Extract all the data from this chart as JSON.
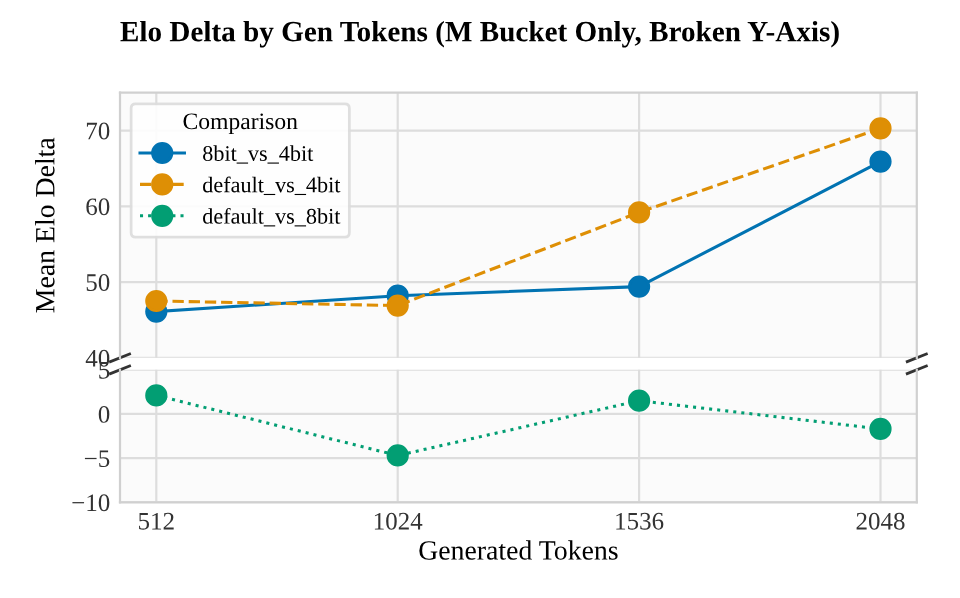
{
  "chart_data": [
    {
      "type": "line",
      "title": "Elo Delta by Gen Tokens (M Bucket Only, Broken Y-Axis)",
      "ylabel": "Mean Elo Delta",
      "legend_title": "Comparison",
      "legend": "top left",
      "grid": true,
      "marker": "circle",
      "tick_labels": "y",
      "x": [
        512,
        1024,
        1536,
        2048
      ],
      "xlim": [
        435,
        2125
      ],
      "xticks": [
        512,
        1024,
        1536,
        2048
      ],
      "ylim": [
        40,
        75
      ],
      "yticks": [
        40,
        50,
        60,
        70
      ],
      "series": [
        {
          "name": "8bit_vs_4bit",
          "color": "#0173b2",
          "line_style": "solid",
          "values": [
            46.1,
            48.2,
            49.4,
            65.9
          ]
        },
        {
          "name": "default_vs_4bit",
          "color": "#de8f05",
          "line_style": "dashed",
          "values": [
            47.5,
            46.9,
            59.2,
            70.3
          ]
        }
      ]
    },
    {
      "type": "line",
      "xlabel": "Generated Tokens",
      "grid": true,
      "marker": "circle",
      "x": [
        512,
        1024,
        1536,
        2048
      ],
      "xlim": [
        435,
        2125
      ],
      "xticks": [
        512,
        1024,
        1536,
        2048
      ],
      "ylim": [
        -10,
        5
      ],
      "yticks": [
        -10,
        -5,
        0,
        5
      ],
      "series": [
        {
          "name": "default_vs_8bit",
          "color": "#029e73",
          "line_style": "dotted",
          "values": [
            2.1,
            -4.7,
            1.5,
            -1.7
          ]
        }
      ]
    }
  ]
}
